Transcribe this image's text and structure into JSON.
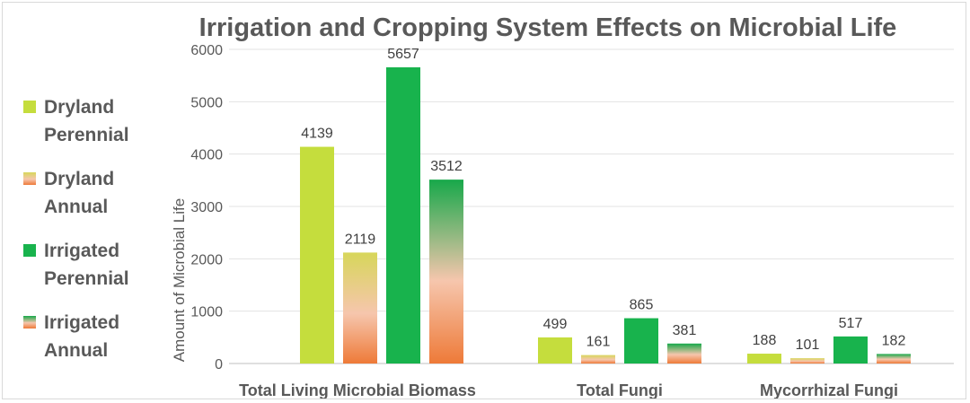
{
  "chart_data": {
    "type": "bar",
    "title": "Irrigation and Cropping System Effects on Microbial Life",
    "xlabel": "",
    "ylabel": "Amount of Microbial Life",
    "ylim": [
      0,
      6000
    ],
    "yticks": [
      0,
      1000,
      2000,
      3000,
      4000,
      5000,
      6000
    ],
    "grid": true,
    "legend_position": "left",
    "categories": [
      "Total Living Microbial Biomass",
      "Total Fungi",
      "Mycorrhizal Fungi"
    ],
    "series": [
      {
        "name": "Dryland Perennial",
        "values": [
          4139,
          499,
          188
        ],
        "color": "#c6dd3e"
      },
      {
        "name": "Dryland Annual",
        "values": [
          2119,
          161,
          101
        ],
        "color": "#e8c87a",
        "gradient": [
          "#d9d45a",
          "#f5c2a8",
          "#ee7b3a"
        ]
      },
      {
        "name": "Irrigated Perennial",
        "values": [
          5657,
          865,
          517
        ],
        "color": "#19b44e"
      },
      {
        "name": "Irrigated Annual",
        "values": [
          3512,
          381,
          182
        ],
        "color": "#6fae6a",
        "gradient": [
          "#19a84c",
          "#f5c2a8",
          "#ee7b3a"
        ]
      }
    ]
  }
}
